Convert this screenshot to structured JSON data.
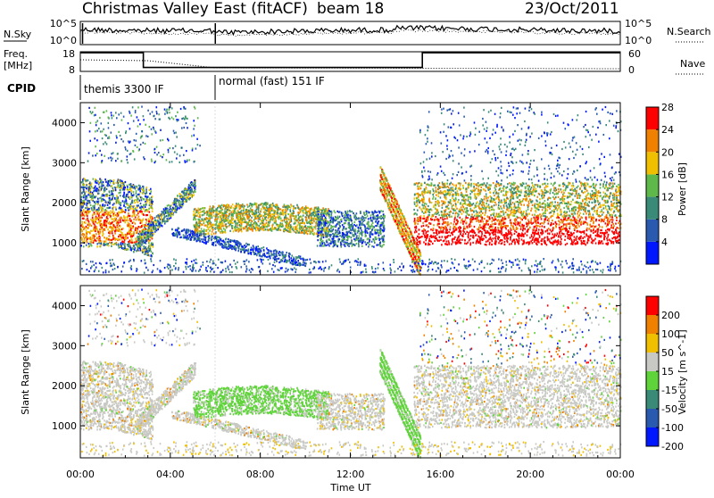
{
  "header": {
    "station": "Christmas Valley East (fitACF)",
    "beam": "beam 18",
    "date": "23/Oct/2011"
  },
  "nsky_panel": {
    "left_label": "N.Sky",
    "left_ticks": [
      "10^5",
      "10^0"
    ],
    "right_label": "N.Search",
    "right_ticks": [
      "10^5",
      "10^0"
    ]
  },
  "freq_panel": {
    "left_label_1": "Freq.",
    "left_label_2": "[MHz]",
    "left_ticks": [
      "18",
      "8"
    ],
    "right_label": "Nave",
    "right_ticks": [
      "60",
      "0"
    ],
    "freq_mhz": {
      "t": [
        0,
        2.8,
        2.8,
        15.2,
        15.2,
        24
      ],
      "v": [
        17.5,
        17.5,
        10.0,
        10.0,
        17.5,
        17.5
      ]
    }
  },
  "cpid_panel": {
    "label": "CPID",
    "segments": [
      {
        "start": 0,
        "end": 6,
        "text": "themis 3300 IF"
      },
      {
        "start": 6,
        "end": 24,
        "text": "normal (fast) 151 IF"
      }
    ]
  },
  "chart_data": [
    {
      "type": "heatmap",
      "title": "",
      "ylabel": "Slant Range [km]",
      "xlabel": "",
      "xlim": [
        0,
        24
      ],
      "ylim": [
        200,
        4500
      ],
      "yticks": [
        "1000",
        "2000",
        "3000",
        "4000"
      ],
      "colorbar": {
        "label": "Power [dB]",
        "ticks": [
          "4",
          "8",
          "12",
          "16",
          "20",
          "24",
          "28"
        ],
        "colors": [
          "#0018ff",
          "#2a5ab0",
          "#3a8a78",
          "#5fb84a",
          "#f0c000",
          "#f08000",
          "#ff0000"
        ]
      }
    },
    {
      "type": "heatmap",
      "title": "",
      "ylabel": "Slant Range [km]",
      "xlabel": "Time UT",
      "xlim": [
        0,
        24
      ],
      "ylim": [
        200,
        4500
      ],
      "yticks": [
        "1000",
        "2000",
        "3000",
        "4000"
      ],
      "xticks": [
        "00:00",
        "04:00",
        "08:00",
        "12:00",
        "16:00",
        "20:00",
        "00:00"
      ],
      "colorbar": {
        "label": "Velocity [m s^-1]",
        "ticks": [
          "200",
          "100",
          "50",
          "15",
          "-15",
          "-50",
          "-100",
          "-200"
        ],
        "colors": [
          "#0018ff",
          "#2a5ab0",
          "#3a8a78",
          "#5fd43a",
          "#c8c8c4",
          "#f0c000",
          "#f08000",
          "#ff0000"
        ]
      }
    }
  ]
}
